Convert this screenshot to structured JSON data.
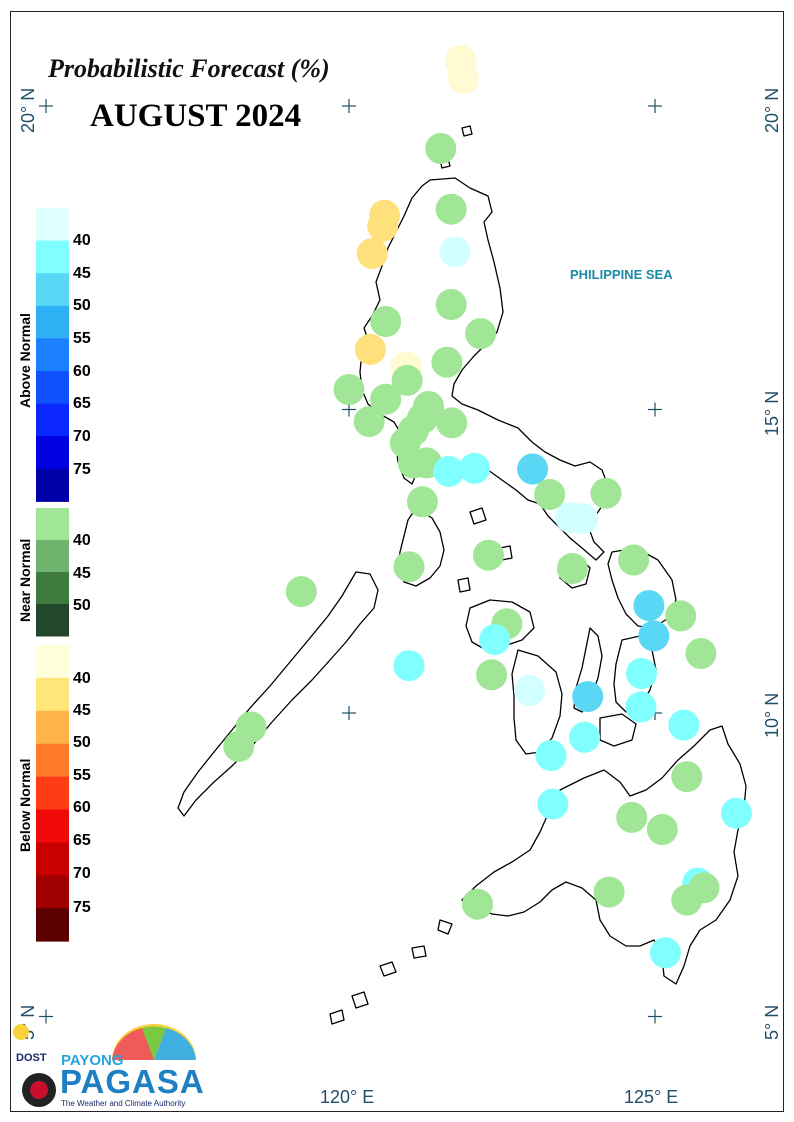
{
  "title": "Probabilistic Forecast (%)",
  "subtitle": "AUGUST 2024",
  "sea_label": "PHILIPPINE SEA",
  "grid": {
    "lat_labels": [
      "20° N",
      "15° N",
      "10° N",
      "5° N"
    ],
    "lon_labels": [
      "120° E",
      "125° E"
    ]
  },
  "legend": {
    "above_normal": {
      "heading": "Above Normal",
      "labels": [
        "40",
        "45",
        "50",
        "55",
        "60",
        "65",
        "70",
        "75"
      ],
      "colors": [
        "#e0ffff",
        "#80ffff",
        "#5ad7f5",
        "#2eb0f5",
        "#1a80ff",
        "#1050ff",
        "#0a28ff",
        "#0000e0",
        "#0000aa"
      ]
    },
    "near_normal": {
      "heading": "Near Normal",
      "labels": [
        "40",
        "45",
        "50"
      ],
      "colors": [
        "#a0e696",
        "#6eb46e",
        "#3f7a3f",
        "#22472a"
      ]
    },
    "below_normal": {
      "heading": "Below Normal",
      "labels": [
        "40",
        "45",
        "50",
        "55",
        "60",
        "65",
        "70",
        "75"
      ],
      "colors": [
        "#ffffdc",
        "#ffe57a",
        "#ffb44a",
        "#ff7a2a",
        "#ff3c14",
        "#f00a0a",
        "#c80000",
        "#a00000",
        "#5a0000"
      ]
    }
  },
  "category_colors": {
    "bn40": "#fffad2",
    "bn45": "#ffe17c",
    "nn40": "#a0e696",
    "an40": "#d2ffff",
    "an45": "#80ffff",
    "an50": "#5ad7f5"
  },
  "stations": [
    {
      "lon": 121.82,
      "lat": 20.75,
      "cat": "bn40"
    },
    {
      "lon": 121.87,
      "lat": 20.45,
      "cat": "bn40"
    },
    {
      "lon": 121.5,
      "lat": 19.3,
      "cat": "nn40"
    },
    {
      "lon": 121.67,
      "lat": 18.3,
      "cat": "nn40"
    },
    {
      "lon": 120.58,
      "lat": 18.2,
      "cat": "bn45"
    },
    {
      "lon": 120.55,
      "lat": 18.02,
      "cat": "bn45"
    },
    {
      "lon": 121.73,
      "lat": 17.6,
      "cat": "an40"
    },
    {
      "lon": 120.38,
      "lat": 17.57,
      "cat": "bn45"
    },
    {
      "lon": 121.67,
      "lat": 16.73,
      "cat": "nn40"
    },
    {
      "lon": 122.15,
      "lat": 16.25,
      "cat": "nn40"
    },
    {
      "lon": 120.6,
      "lat": 16.45,
      "cat": "nn40"
    },
    {
      "lon": 120.35,
      "lat": 15.99,
      "cat": "bn45"
    },
    {
      "lon": 120.93,
      "lat": 15.7,
      "cat": "bn40"
    },
    {
      "lon": 121.6,
      "lat": 15.78,
      "cat": "nn40"
    },
    {
      "lon": 120.95,
      "lat": 15.48,
      "cat": "nn40"
    },
    {
      "lon": 120.0,
      "lat": 15.33,
      "cat": "nn40"
    },
    {
      "lon": 120.6,
      "lat": 15.17,
      "cat": "nn40"
    },
    {
      "lon": 121.3,
      "lat": 15.05,
      "cat": "nn40"
    },
    {
      "lon": 121.2,
      "lat": 14.85,
      "cat": "nn40"
    },
    {
      "lon": 120.33,
      "lat": 14.8,
      "cat": "nn40"
    },
    {
      "lon": 121.05,
      "lat": 14.65,
      "cat": "nn40"
    },
    {
      "lon": 121.68,
      "lat": 14.78,
      "cat": "nn40"
    },
    {
      "lon": 120.92,
      "lat": 14.45,
      "cat": "nn40"
    },
    {
      "lon": 121.05,
      "lat": 14.12,
      "cat": "nn40"
    },
    {
      "lon": 121.27,
      "lat": 14.12,
      "cat": "nn40"
    },
    {
      "lon": 121.63,
      "lat": 13.98,
      "cat": "an45"
    },
    {
      "lon": 122.05,
      "lat": 14.03,
      "cat": "an45"
    },
    {
      "lon": 123.0,
      "lat": 14.02,
      "cat": "an50"
    },
    {
      "lon": 121.2,
      "lat": 13.48,
      "cat": "nn40"
    },
    {
      "lon": 123.28,
      "lat": 13.6,
      "cat": "nn40"
    },
    {
      "lon": 124.2,
      "lat": 13.62,
      "cat": "nn40"
    },
    {
      "lon": 123.62,
      "lat": 13.22,
      "cat": "an40"
    },
    {
      "lon": 123.82,
      "lat": 13.2,
      "cat": "an40"
    },
    {
      "lon": 122.28,
      "lat": 12.6,
      "cat": "nn40"
    },
    {
      "lon": 120.98,
      "lat": 12.41,
      "cat": "nn40"
    },
    {
      "lon": 123.65,
      "lat": 12.38,
      "cat": "nn40"
    },
    {
      "lon": 124.65,
      "lat": 12.52,
      "cat": "nn40"
    },
    {
      "lon": 119.22,
      "lat": 12.0,
      "cat": "nn40"
    },
    {
      "lon": 124.9,
      "lat": 11.77,
      "cat": "an50"
    },
    {
      "lon": 125.42,
      "lat": 11.6,
      "cat": "nn40"
    },
    {
      "lon": 122.58,
      "lat": 11.47,
      "cat": "nn40"
    },
    {
      "lon": 122.38,
      "lat": 11.21,
      "cat": "an45"
    },
    {
      "lon": 124.98,
      "lat": 11.27,
      "cat": "an50"
    },
    {
      "lon": 125.75,
      "lat": 10.98,
      "cat": "nn40"
    },
    {
      "lon": 120.98,
      "lat": 10.78,
      "cat": "an45"
    },
    {
      "lon": 124.78,
      "lat": 10.65,
      "cat": "an45"
    },
    {
      "lon": 122.33,
      "lat": 10.63,
      "cat": "nn40"
    },
    {
      "lon": 122.95,
      "lat": 10.37,
      "cat": "an40"
    },
    {
      "lon": 123.9,
      "lat": 10.27,
      "cat": "an50"
    },
    {
      "lon": 124.77,
      "lat": 10.1,
      "cat": "an45"
    },
    {
      "lon": 125.47,
      "lat": 9.8,
      "cat": "an45"
    },
    {
      "lon": 118.4,
      "lat": 9.77,
      "cat": "nn40"
    },
    {
      "lon": 123.85,
      "lat": 9.6,
      "cat": "an45"
    },
    {
      "lon": 118.2,
      "lat": 9.45,
      "cat": "nn40"
    },
    {
      "lon": 123.3,
      "lat": 9.3,
      "cat": "an45"
    },
    {
      "lon": 125.52,
      "lat": 8.95,
      "cat": "nn40"
    },
    {
      "lon": 123.33,
      "lat": 8.5,
      "cat": "an45"
    },
    {
      "lon": 124.62,
      "lat": 8.28,
      "cat": "nn40"
    },
    {
      "lon": 126.33,
      "lat": 8.35,
      "cat": "an45"
    },
    {
      "lon": 125.12,
      "lat": 8.08,
      "cat": "nn40"
    },
    {
      "lon": 125.7,
      "lat": 7.2,
      "cat": "an45"
    },
    {
      "lon": 125.8,
      "lat": 7.12,
      "cat": "nn40"
    },
    {
      "lon": 124.25,
      "lat": 7.05,
      "cat": "nn40"
    },
    {
      "lon": 125.52,
      "lat": 6.92,
      "cat": "nn40"
    },
    {
      "lon": 122.1,
      "lat": 6.85,
      "cat": "nn40"
    },
    {
      "lon": 125.17,
      "lat": 6.05,
      "cat": "an45"
    }
  ],
  "logo": {
    "dost": "DOST",
    "payong": "PAYONG",
    "pagasa": "PAGASA",
    "tagline": "The Weather and Climate Authority"
  }
}
